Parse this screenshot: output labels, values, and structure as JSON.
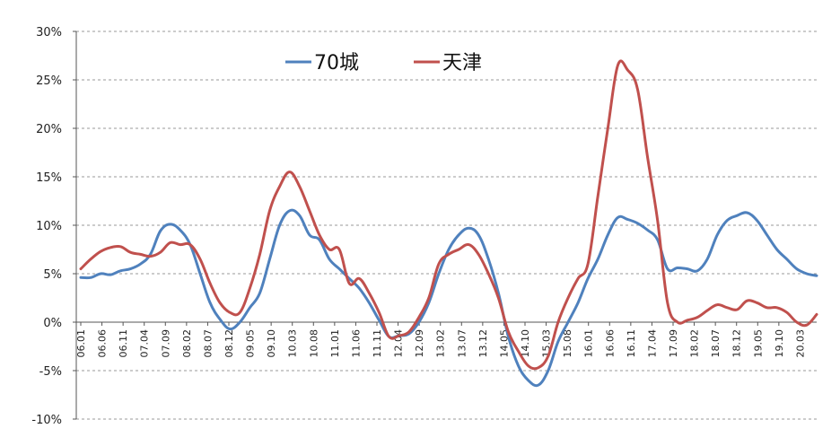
{
  "chart_data": {
    "type": "line",
    "title": "",
    "xlabel": "",
    "ylabel": "",
    "ylim": [
      -10,
      30
    ],
    "y_tick_labels": [
      "30%",
      "25%",
      "20%",
      "15%",
      "10%",
      "5%",
      "0%",
      "-5%",
      "-10%"
    ],
    "y_tick_values": [
      30,
      25,
      20,
      15,
      10,
      5,
      0,
      -5,
      -10
    ],
    "x_tick_labels": [
      "06.01",
      "06.06",
      "06.11",
      "07.04",
      "07.09",
      "08.02",
      "08.07",
      "08.12",
      "09.05",
      "09.10",
      "10.03",
      "10.08",
      "11.01",
      "11.06",
      "11.11",
      "12.04",
      "12.09",
      "13.02",
      "13.07",
      "13.12",
      "14.05",
      "14.10",
      "15.03",
      "15.08",
      "16.01",
      "16.06",
      "16.11",
      "17.04",
      "17.09",
      "18.02",
      "18.07",
      "18.12",
      "19.05",
      "19.10",
      "20.03"
    ],
    "grid": "horizontal dashed",
    "legend_position": "top-center",
    "series": [
      {
        "name": "70城",
        "color": "#4F81BD",
        "points": [
          [
            0,
            4.6
          ],
          [
            1,
            4.6
          ],
          [
            2,
            5.0
          ],
          [
            3,
            4.9
          ],
          [
            4,
            5.3
          ],
          [
            5,
            5.5
          ],
          [
            6,
            6.0
          ],
          [
            7,
            7.0
          ],
          [
            8,
            9.4
          ],
          [
            9,
            10.1
          ],
          [
            10,
            9.5
          ],
          [
            11,
            8.0
          ],
          [
            12,
            5.0
          ],
          [
            13,
            2.0
          ],
          [
            14,
            0.3
          ],
          [
            15,
            -0.7
          ],
          [
            16,
            0.0
          ],
          [
            17,
            1.5
          ],
          [
            18,
            3.0
          ],
          [
            19,
            6.5
          ],
          [
            20,
            10.0
          ],
          [
            21,
            11.5
          ],
          [
            22,
            11.0
          ],
          [
            23,
            9.0
          ],
          [
            24,
            8.5
          ],
          [
            25,
            6.5
          ],
          [
            26,
            5.5
          ],
          [
            27,
            4.5
          ],
          [
            28,
            3.5
          ],
          [
            29,
            2.0
          ],
          [
            30,
            0.2
          ],
          [
            31,
            -1.5
          ],
          [
            32,
            -1.4
          ],
          [
            33,
            -1.2
          ],
          [
            34,
            0.0
          ],
          [
            35,
            2.0
          ],
          [
            36,
            5.0
          ],
          [
            37,
            7.5
          ],
          [
            38,
            9.0
          ],
          [
            39,
            9.7
          ],
          [
            40,
            9.0
          ],
          [
            41,
            6.5
          ],
          [
            42,
            3.0
          ],
          [
            43,
            -1.5
          ],
          [
            44,
            -4.5
          ],
          [
            45,
            -6.0
          ],
          [
            46,
            -6.5
          ],
          [
            47,
            -5.0
          ],
          [
            48,
            -2.0
          ],
          [
            49,
            0.0
          ],
          [
            50,
            2.0
          ],
          [
            51,
            4.5
          ],
          [
            52,
            6.5
          ],
          [
            53,
            9.0
          ],
          [
            54,
            10.8
          ],
          [
            55,
            10.6
          ],
          [
            56,
            10.2
          ],
          [
            57,
            9.5
          ],
          [
            58,
            8.5
          ],
          [
            59,
            5.5
          ],
          [
            60,
            5.6
          ],
          [
            61,
            5.5
          ],
          [
            62,
            5.3
          ],
          [
            63,
            6.5
          ],
          [
            64,
            9.0
          ],
          [
            65,
            10.5
          ],
          [
            66,
            11.0
          ],
          [
            67,
            11.3
          ],
          [
            68,
            10.5
          ],
          [
            69,
            9.0
          ],
          [
            70,
            7.5
          ],
          [
            71,
            6.5
          ],
          [
            72,
            5.5
          ],
          [
            73,
            5.0
          ],
          [
            74,
            4.8
          ]
        ]
      },
      {
        "name": "天津",
        "color": "#C0504D",
        "points": [
          [
            0,
            5.5
          ],
          [
            1,
            6.5
          ],
          [
            2,
            7.3
          ],
          [
            3,
            7.7
          ],
          [
            4,
            7.8
          ],
          [
            5,
            7.2
          ],
          [
            6,
            7.0
          ],
          [
            7,
            6.8
          ],
          [
            8,
            7.2
          ],
          [
            9,
            8.2
          ],
          [
            10,
            8.0
          ],
          [
            11,
            8.0
          ],
          [
            12,
            6.5
          ],
          [
            13,
            4.0
          ],
          [
            14,
            2.0
          ],
          [
            15,
            1.0
          ],
          [
            16,
            1.0
          ],
          [
            17,
            3.5
          ],
          [
            18,
            7.0
          ],
          [
            19,
            11.5
          ],
          [
            20,
            14.0
          ],
          [
            21,
            15.5
          ],
          [
            22,
            14.0
          ],
          [
            23,
            11.5
          ],
          [
            24,
            9.0
          ],
          [
            25,
            7.5
          ],
          [
            26,
            7.5
          ],
          [
            27,
            4.0
          ],
          [
            28,
            4.5
          ],
          [
            29,
            3.0
          ],
          [
            30,
            1.0
          ],
          [
            31,
            -1.5
          ],
          [
            32,
            -1.4
          ],
          [
            33,
            -1.0
          ],
          [
            34,
            0.5
          ],
          [
            35,
            2.5
          ],
          [
            36,
            6.0
          ],
          [
            37,
            7.0
          ],
          [
            38,
            7.5
          ],
          [
            39,
            8.0
          ],
          [
            40,
            7.0
          ],
          [
            41,
            5.0
          ],
          [
            42,
            2.5
          ],
          [
            43,
            -1.0
          ],
          [
            44,
            -3.0
          ],
          [
            45,
            -4.5
          ],
          [
            46,
            -4.7
          ],
          [
            47,
            -3.5
          ],
          [
            48,
            0.0
          ],
          [
            49,
            2.5
          ],
          [
            50,
            4.5
          ],
          [
            51,
            6.0
          ],
          [
            52,
            13.0
          ],
          [
            53,
            20.0
          ],
          [
            54,
            26.5
          ],
          [
            55,
            26.0
          ],
          [
            56,
            24.0
          ],
          [
            57,
            17.0
          ],
          [
            58,
            10.5
          ],
          [
            59,
            2.0
          ],
          [
            60,
            0.0
          ],
          [
            61,
            0.2
          ],
          [
            62,
            0.5
          ],
          [
            63,
            1.2
          ],
          [
            64,
            1.8
          ],
          [
            65,
            1.5
          ],
          [
            66,
            1.3
          ],
          [
            67,
            2.2
          ],
          [
            68,
            2.0
          ],
          [
            69,
            1.5
          ],
          [
            70,
            1.5
          ],
          [
            71,
            1.0
          ],
          [
            72,
            0.0
          ],
          [
            73,
            -0.3
          ],
          [
            74,
            0.8
          ]
        ]
      }
    ]
  }
}
